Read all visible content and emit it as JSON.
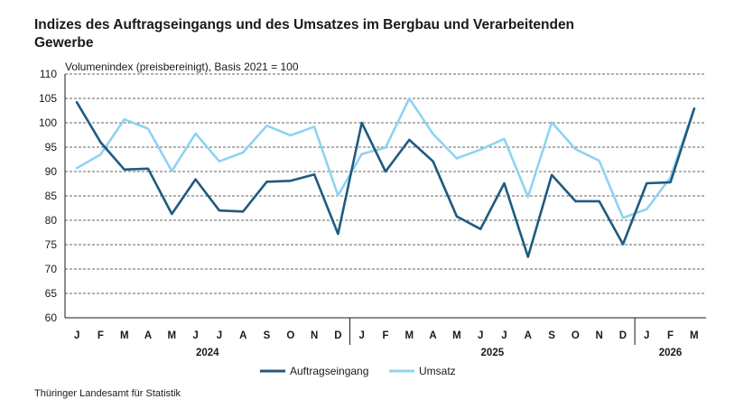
{
  "title": "Indizes des Auftragseingangs und des Umsatzes im Bergbau und  Verarbeitenden Gewerbe",
  "subtitle": "Volumenindex (preisbereinigt), Basis 2021 = 100",
  "source": "Thüringer Landesamt für Statistik",
  "chart_data": {
    "type": "line",
    "categories": [
      "J",
      "F",
      "M",
      "A",
      "M",
      "J",
      "J",
      "A",
      "S",
      "O",
      "N",
      "D",
      "J",
      "F",
      "M",
      "A",
      "M",
      "J",
      "J",
      "A",
      "S",
      "O",
      "N",
      "D",
      "J",
      "F",
      "M"
    ],
    "years": [
      {
        "label": "2024",
        "start": 0,
        "end": 11
      },
      {
        "label": "2025",
        "start": 12,
        "end": 23
      },
      {
        "label": "2026",
        "start": 24,
        "end": 26
      }
    ],
    "ylim": [
      60,
      110
    ],
    "yticks": [
      60,
      65,
      70,
      75,
      80,
      85,
      90,
      95,
      100,
      105,
      110
    ],
    "grid": "horizontal-dashed",
    "legend": "bottom",
    "series": [
      {
        "name": "Auftragseingang",
        "color": "#1f5a80",
        "values": [
          104.2,
          96.0,
          90.4,
          90.6,
          81.3,
          88.4,
          82.0,
          81.8,
          87.9,
          88.1,
          89.4,
          77.2,
          100.0,
          90.0,
          96.5,
          92.1,
          80.8,
          78.2,
          87.6,
          72.5,
          89.3,
          83.9,
          83.9,
          75.1,
          87.6,
          87.8,
          102.9
        ]
      },
      {
        "name": "Umsatz",
        "color": "#8fd3f2",
        "values": [
          90.7,
          93.5,
          100.7,
          98.8,
          90.1,
          97.8,
          92.1,
          93.9,
          99.4,
          97.4,
          99.2,
          85.1,
          93.6,
          94.9,
          105.0,
          97.7,
          92.7,
          94.5,
          96.7,
          84.8,
          100.1,
          94.6,
          92.2,
          80.5,
          82.3,
          88.8,
          103.0
        ]
      }
    ]
  }
}
